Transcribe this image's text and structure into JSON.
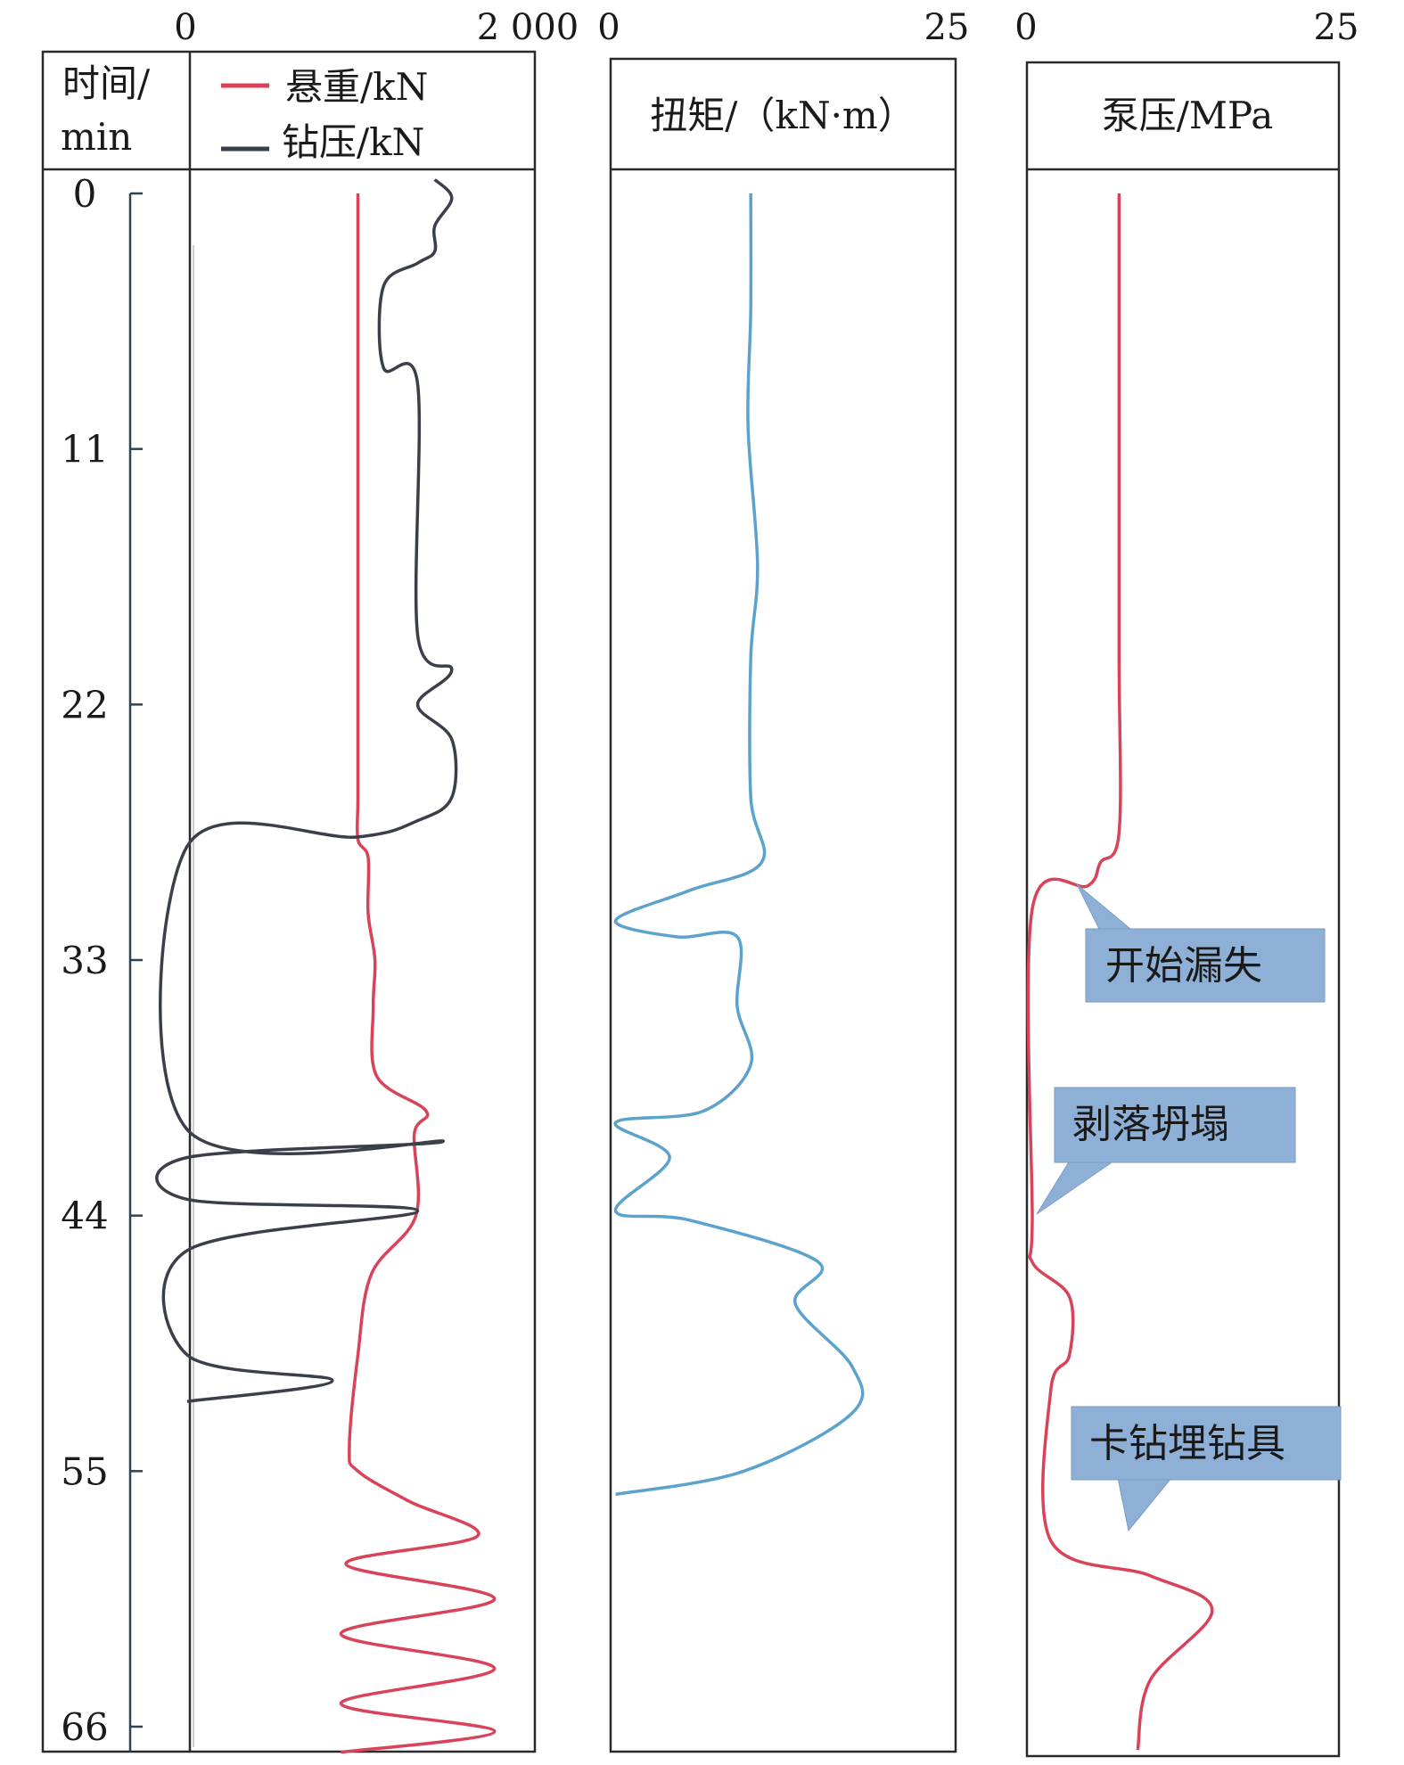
{
  "chart_data": {
    "type": "line",
    "y_axis": {
      "label_line1": "时间/",
      "label_line2": "min",
      "ticks": [
        "0",
        "11",
        "22",
        "33",
        "44",
        "55",
        "66"
      ],
      "range": [
        0,
        66
      ]
    },
    "panels": [
      {
        "id": "load",
        "x_range": [
          0,
          2000
        ],
        "x_tick_min": "0",
        "x_tick_max": "2 000",
        "series": [
          {
            "name": "悬重/kN",
            "color": "#d9435a",
            "points": [
              [
                1000,
                0
              ],
              [
                1000,
                11
              ],
              [
                1000,
                22
              ],
              [
                1000,
                26
              ],
              [
                1000,
                27.8
              ],
              [
                1060,
                28.6
              ],
              [
                1060,
                31
              ],
              [
                1100,
                33
              ],
              [
                1090,
                35
              ],
              [
                1110,
                38
              ],
              [
                1400,
                39.5
              ],
              [
                1330,
                40.5
              ],
              [
                1340,
                44
              ],
              [
                1080,
                46.5
              ],
              [
                1000,
                50
              ],
              [
                950,
                54
              ],
              [
                1000,
                55
              ],
              [
                1300,
                56.3
              ],
              [
                1700,
                57.8
              ],
              [
                930,
                59
              ],
              [
                1800,
                60.5
              ],
              [
                900,
                62
              ],
              [
                1800,
                63.5
              ],
              [
                900,
                65
              ],
              [
                1800,
                66.2
              ],
              [
                900,
                67.1
              ]
            ]
          },
          {
            "name": "钻压/kN",
            "color": "#3a3f4a",
            "points": [
              [
                1450,
                -0.6
              ],
              [
                1550,
                0.2
              ],
              [
                1450,
                1.4
              ],
              [
                1450,
                2.5
              ],
              [
                1350,
                3
              ],
              [
                1150,
                4
              ],
              [
                1150,
                7.5
              ],
              [
                1350,
                8.2
              ],
              [
                1350,
                19
              ],
              [
                1550,
                20.5
              ],
              [
                1350,
                22
              ],
              [
                1550,
                23.5
              ],
              [
                1550,
                26
              ],
              [
                1350,
                27
              ],
              [
                1000,
                27.7
              ],
              [
                0,
                28.1
              ],
              [
                0,
                40.3
              ],
              [
                1500,
                40.8
              ],
              [
                0,
                41.5
              ],
              [
                0,
                43.3
              ],
              [
                1350,
                43.8
              ],
              [
                0,
                45.5
              ],
              [
                0,
                50
              ],
              [
                850,
                51.1
              ],
              [
                0,
                52
              ]
            ]
          }
        ]
      },
      {
        "id": "torque",
        "x_range": [
          0,
          25
        ],
        "x_tick_min": "0",
        "x_tick_max": "25",
        "title": "扭矩/（kN·m）",
        "series": [
          {
            "name": "扭矩",
            "color": "#5ba3cc",
            "points": [
              [
                10.5,
                0
              ],
              [
                10.5,
                5
              ],
              [
                10.3,
                10
              ],
              [
                11,
                16
              ],
              [
                10.5,
                20
              ],
              [
                10.5,
                26
              ],
              [
                11.3,
                28.8
              ],
              [
                6,
                30
              ],
              [
                0.5,
                31.3
              ],
              [
                5,
                32
              ],
              [
                9.5,
                32
              ],
              [
                9.5,
                35
              ],
              [
                10.5,
                37.5
              ],
              [
                7,
                39.5
              ],
              [
                0.5,
                40
              ],
              [
                4.5,
                41.5
              ],
              [
                0.5,
                43.8
              ],
              [
                6,
                44.2
              ],
              [
                15.5,
                46
              ],
              [
                13.8,
                47.8
              ],
              [
                18,
                50.5
              ],
              [
                18,
                52.5
              ],
              [
                10,
                55
              ],
              [
                0.5,
                56
              ]
            ]
          }
        ]
      },
      {
        "id": "pump",
        "x_range": [
          0,
          25
        ],
        "x_tick_min": "0",
        "x_tick_max": "25",
        "title": "泵压/MPa",
        "series": [
          {
            "name": "泵压",
            "color": "#d9435a",
            "points": [
              [
                7.5,
                0
              ],
              [
                7.5,
                10
              ],
              [
                7.5,
                20
              ],
              [
                7.5,
                27.5
              ],
              [
                6,
                28.8
              ],
              [
                5,
                29.8
              ],
              [
                0.5,
                30.8
              ],
              [
                0.5,
                44
              ],
              [
                0.5,
                46
              ],
              [
                3.5,
                47.5
              ],
              [
                3.5,
                50
              ],
              [
                2,
                51.5
              ],
              [
                2,
                58
              ],
              [
                10,
                59.5
              ],
              [
                15,
                61
              ],
              [
                10,
                64
              ],
              [
                9,
                67
              ]
            ]
          }
        ]
      }
    ],
    "annotations": [
      {
        "text": "开始漏失",
        "panel": "pump",
        "pointer_at": [
          5,
          29.8
        ]
      },
      {
        "text": "剥落坍塌",
        "panel": "pump",
        "pointer_at": [
          0.5,
          44
        ]
      },
      {
        "text": "卡钻埋钻具",
        "panel": "pump",
        "pointer_at": [
          7,
          59.3
        ]
      }
    ]
  }
}
